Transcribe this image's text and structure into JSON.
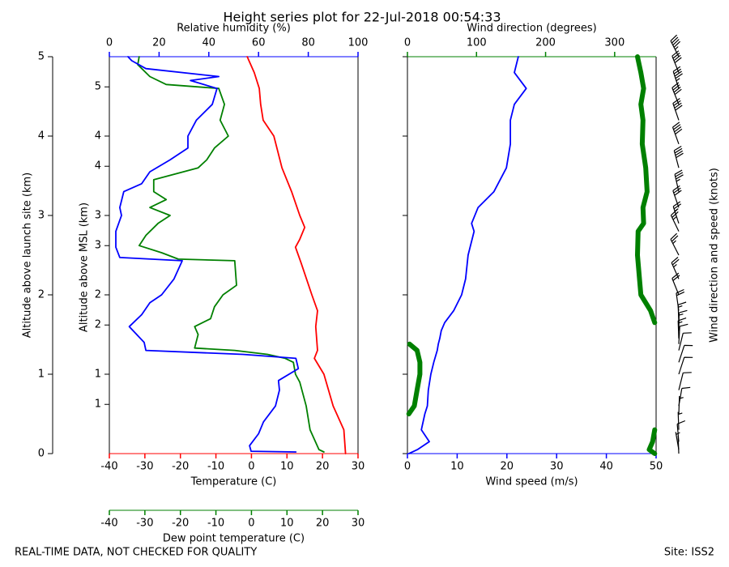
{
  "title": "Height series plot for 22-Jul-2018 00:54:33",
  "footer_left": "REAL-TIME DATA, NOT CHECKED FOR QUALITY",
  "footer_right": "Site: ISS2",
  "chart_data": [
    {
      "type": "line",
      "ylabel": "Altitude above launch site (km)",
      "ylim": [
        0,
        5
      ],
      "yticks": [
        0,
        1,
        2,
        3,
        4,
        5
      ],
      "y2label": "Altitude above MSL (km)",
      "y2lim": [
        0.38,
        5.38
      ],
      "y2ticks": [
        {
          "value": 1.0,
          "label": "1"
        },
        {
          "value": 1.38,
          "label": "1"
        },
        {
          "value": 2.0,
          "label": "2"
        },
        {
          "value": 2.38,
          "label": "2"
        },
        {
          "value": 3.0,
          "label": "3"
        },
        {
          "value": 3.38,
          "label": "3"
        },
        {
          "value": 4.0,
          "label": "4"
        },
        {
          "value": 4.38,
          "label": "4"
        },
        {
          "value": 5.0,
          "label": "5"
        }
      ],
      "axes": [
        {
          "label": "Temperature (C)",
          "lim": [
            -40,
            30
          ],
          "ticks": [
            -40,
            -30,
            -20,
            -10,
            0,
            10,
            20,
            30
          ],
          "color": "#ff0000",
          "position": "bottom"
        },
        {
          "label": "Dew point temperature (C)",
          "lim": [
            -40,
            30
          ],
          "ticks": [
            -40,
            -30,
            -20,
            -10,
            0,
            10,
            20,
            30
          ],
          "color": "#008000",
          "position": "bottom2"
        },
        {
          "label": "Relative humidity (%)",
          "lim": [
            0,
            100
          ],
          "ticks": [
            0,
            20,
            40,
            60,
            80,
            100
          ],
          "color": "#0000ff",
          "position": "top"
        }
      ],
      "series": [
        {
          "axis": 0,
          "color": "#ff0000",
          "linewidth": 1.8,
          "y": [
            0,
            0.3,
            0.6,
            1.0,
            1.2,
            1.3,
            1.6,
            1.8,
            2.0,
            2.4,
            2.6,
            2.7,
            2.85,
            3.0,
            3.3,
            3.6,
            4.0,
            4.2,
            4.4,
            4.6,
            4.8,
            5.0
          ],
          "values": [
            26.5,
            26,
            23,
            20.4,
            17.7,
            18.6,
            18.1,
            18.6,
            17,
            14,
            12.4,
            13.6,
            15,
            13.6,
            11.3,
            8.6,
            6.3,
            3.3,
            2.6,
            2.2,
            0.8,
            -1.2
          ]
        },
        {
          "axis": 1,
          "color": "#008000",
          "linewidth": 1.8,
          "y": [
            0.02,
            0.05,
            0.3,
            0.6,
            0.9,
            1.0,
            1.15,
            1.2,
            1.25,
            1.3,
            1.33,
            1.5,
            1.6,
            1.7,
            1.85,
            2.0,
            2.12,
            2.43,
            2.45,
            2.53,
            2.62,
            2.75,
            2.9,
            3.0,
            3.1,
            3.2,
            3.3,
            3.45,
            3.6,
            3.7,
            3.85,
            4.0,
            4.2,
            4.4,
            4.6,
            4.65,
            4.75,
            4.9,
            5.0
          ],
          "values": [
            20.4,
            19,
            16.5,
            15.4,
            13.6,
            12.4,
            11.8,
            9.5,
            4.5,
            -4.7,
            -16,
            -15,
            -16,
            -11.5,
            -10.4,
            -8,
            -4.2,
            -4.7,
            -20.6,
            -25.2,
            -31.6,
            -29.7,
            -26.3,
            -22.9,
            -28.6,
            -24,
            -27.5,
            -27.5,
            -15,
            -12.6,
            -10.4,
            -6.5,
            -8.8,
            -7.6,
            -9.2,
            -24,
            -28.6,
            -32,
            -31.6
          ]
        },
        {
          "axis": 2,
          "color": "#0000ff",
          "linewidth": 1.8,
          "y": [
            0.02,
            0.03,
            0.1,
            0.25,
            0.4,
            0.6,
            0.8,
            0.92,
            1.07,
            1.2,
            1.25,
            1.3,
            1.4,
            1.6,
            1.75,
            1.9,
            2.0,
            2.2,
            2.43,
            2.47,
            2.6,
            2.8,
            3.0,
            3.1,
            3.3,
            3.4,
            3.55,
            3.7,
            3.85,
            4.0,
            4.2,
            4.4,
            4.6,
            4.7,
            4.75,
            4.85,
            4.95,
            5.0
          ],
          "values": [
            75,
            57,
            56.4,
            60,
            62,
            66.8,
            68.4,
            68,
            76,
            75,
            53.7,
            14.7,
            14,
            8,
            13,
            16.3,
            21,
            26,
            29.3,
            4.2,
            2.6,
            2.6,
            4.9,
            4.2,
            5.8,
            13,
            16.3,
            24.4,
            31.6,
            31.6,
            35,
            41.4,
            43.3,
            32.6,
            44,
            14.7,
            9,
            7.5
          ]
        }
      ]
    },
    {
      "type": "line",
      "sharey": true,
      "barbs": true,
      "barb_label": "Wind direction and speed (knots)",
      "axes": [
        {
          "label": "Wind speed (m/s)",
          "lim": [
            0,
            50
          ],
          "ticks": [
            0,
            10,
            20,
            30,
            40,
            50
          ],
          "color": "#0000ff",
          "position": "bottom"
        },
        {
          "label": "Wind direction (degrees)",
          "lim": [
            0,
            360
          ],
          "ticks": [
            0,
            100,
            200,
            300
          ],
          "color": "#008000",
          "position": "top"
        }
      ],
      "series": [
        {
          "axis": 0,
          "color": "#0000ff",
          "linewidth": 1.8,
          "y": [
            0,
            0.05,
            0.15,
            0.3,
            0.5,
            0.6,
            0.8,
            1.0,
            1.15,
            1.3,
            1.38,
            1.45,
            1.55,
            1.65,
            1.8,
            2.0,
            2.2,
            2.5,
            2.8,
            2.9,
            3.1,
            3.3,
            3.6,
            3.9,
            4.2,
            4.4,
            4.6,
            4.8,
            5.0
          ],
          "values": [
            0.3,
            2,
            4.4,
            2.8,
            3.5,
            4,
            4.2,
            4.7,
            5.3,
            6,
            6.2,
            6.5,
            6.8,
            7.5,
            9.3,
            10.9,
            11.7,
            12.2,
            13.4,
            12.9,
            14.2,
            17.4,
            19.9,
            20.7,
            20.7,
            21.5,
            23.9,
            21.5,
            22.3
          ]
        },
        {
          "axis": 1,
          "color": "#008000",
          "linewidth": 6,
          "y": [
            0,
            0.05,
            0.15,
            0.3,
            0.5,
            0.6,
            0.8,
            1.0,
            1.15,
            1.3,
            1.38,
            1.45,
            1.55,
            1.65,
            1.8,
            2.0,
            2.2,
            2.5,
            2.8,
            2.9,
            3.1,
            3.3,
            3.6,
            3.9,
            4.2,
            4.4,
            4.6,
            4.8,
            5.0
          ],
          "values": [
            358,
            350,
            355,
            358,
            2,
            10,
            14,
            18,
            18,
            14,
            3,
            358,
            1,
            358,
            352,
            338,
            336,
            333,
            334,
            342,
            341,
            347,
            345,
            340,
            341,
            338,
            342,
            338,
            333
          ]
        }
      ]
    }
  ]
}
